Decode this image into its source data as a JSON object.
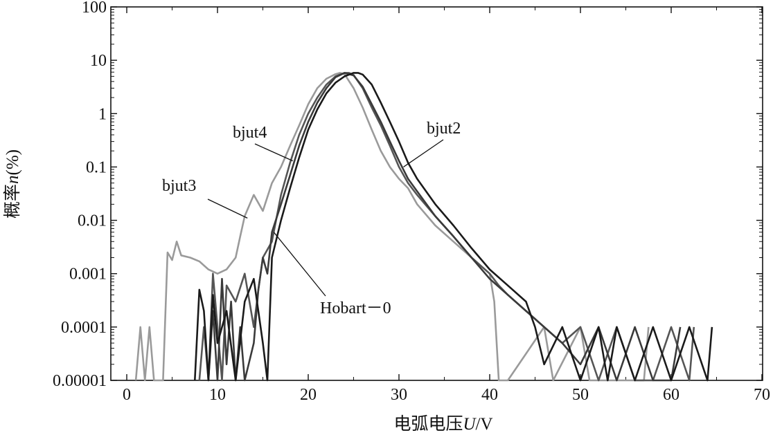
{
  "chart_data": {
    "type": "line",
    "title": "",
    "xlabel_main": "电弧电压",
    "xlabel_var": "U",
    "xlabel_unit": "/V",
    "ylabel_main": "概率",
    "ylabel_var": "n",
    "ylabel_unit": "(%)",
    "xlim": [
      0,
      70
    ],
    "ylim": [
      1e-05,
      100
    ],
    "yscale": "log",
    "grid": false,
    "xticks": [
      0,
      10,
      20,
      30,
      40,
      50,
      60,
      70
    ],
    "xtick_labels": [
      "0",
      "10",
      "20",
      "30",
      "40",
      "50",
      "60",
      "70"
    ],
    "yticks": [
      1e-05,
      0.0001,
      0.001,
      0.01,
      0.1,
      1,
      10,
      100
    ],
    "ytick_labels": [
      "0.00001",
      "0.0001",
      "0.001",
      "0.01",
      "0.1",
      "1",
      "10",
      "100"
    ],
    "series": [
      {
        "name": "bjut3",
        "color": "#9a9a9a",
        "x": [
          1.0,
          1.5,
          2.0,
          2.5,
          3.0,
          3.5,
          4.0,
          4.5,
          5.0,
          5.5,
          6.0,
          7.0,
          8.0,
          9.0,
          10.0,
          11.0,
          12.0,
          12.5,
          13.0,
          14.0,
          15.0,
          16.0,
          17.0,
          18.0,
          19.0,
          20.0,
          21.0,
          22.0,
          23.0,
          23.5,
          24.0,
          25.0,
          26.0,
          27.0,
          28.0,
          29.0,
          30.0,
          31.0,
          32.0,
          34.0,
          36.0,
          38.0,
          40.0,
          40.5,
          41.0,
          42.0,
          46.0,
          47.0,
          50.0,
          51.0,
          57.0,
          57.5
        ],
        "y": [
          1e-05,
          0.0001,
          1e-05,
          0.0001,
          1e-05,
          1e-05,
          1e-05,
          0.0025,
          0.0018,
          0.004,
          0.0022,
          0.002,
          0.0017,
          0.0012,
          0.001,
          0.0012,
          0.002,
          0.005,
          0.012,
          0.03,
          0.015,
          0.05,
          0.1,
          0.25,
          0.6,
          1.5,
          3.0,
          4.5,
          5.5,
          5.8,
          5.5,
          3.0,
          1.3,
          0.5,
          0.2,
          0.1,
          0.06,
          0.04,
          0.02,
          0.008,
          0.004,
          0.002,
          0.001,
          0.0003,
          1e-05,
          1e-05,
          0.0001,
          1e-05,
          0.0001,
          1e-05,
          1e-05,
          0.0001
        ]
      },
      {
        "name": "bjut4",
        "color": "#555555",
        "x": [
          8.0,
          8.5,
          9.0,
          9.5,
          10.0,
          10.5,
          11.0,
          12.0,
          13.0,
          14.0,
          14.5,
          15.0,
          16.0,
          17.0,
          18.0,
          19.0,
          20.0,
          21.0,
          22.0,
          23.0,
          24.0,
          24.5,
          25.0,
          26.0,
          27.0,
          28.0,
          29.0,
          30.0,
          31.0,
          32.0,
          34.0,
          36.0,
          38.0,
          40.0,
          41.0,
          42.0,
          44.0,
          46.0,
          48.0,
          50.0,
          52.0,
          54.0,
          56.0,
          58.0,
          60.0,
          62.0,
          62.5
        ],
        "y": [
          1e-05,
          0.0001,
          1e-05,
          0.001,
          0.0001,
          1e-05,
          0.0006,
          0.0003,
          0.001,
          0.0001,
          0.0005,
          0.002,
          0.004,
          0.03,
          0.12,
          0.4,
          1.0,
          2.0,
          3.5,
          5.0,
          5.8,
          5.8,
          5.3,
          3.0,
          1.3,
          0.6,
          0.25,
          0.1,
          0.05,
          0.03,
          0.012,
          0.005,
          0.002,
          0.001,
          0.0006,
          0.0004,
          0.0002,
          0.0001,
          5e-05,
          0.0001,
          1e-05,
          0.0001,
          1e-05,
          1e-05,
          0.0001,
          1e-05,
          0.0001
        ]
      },
      {
        "name": "Hobart-0",
        "color": "#3a3a3a",
        "x": [
          9.0,
          9.5,
          10.0,
          10.5,
          11.0,
          11.5,
          12.0,
          12.5,
          13.0,
          14.0,
          14.5,
          15.0,
          15.5,
          16.0,
          17.0,
          18.0,
          19.0,
          20.0,
          21.0,
          22.0,
          23.0,
          24.0,
          25.0,
          26.0,
          27.0,
          28.0,
          29.0,
          30.0,
          31.0,
          32.0,
          34.0,
          36.0,
          38.0,
          40.0,
          42.0,
          44.0,
          46.0,
          48.0,
          50.0,
          52.0,
          54.0,
          56.0,
          58.0,
          60.0,
          61.0
        ],
        "y": [
          1e-05,
          0.0002,
          1e-05,
          0.0008,
          2e-05,
          0.0003,
          1e-05,
          0.0001,
          1e-05,
          5e-05,
          0.0005,
          0.002,
          0.001,
          0.006,
          0.02,
          0.07,
          0.25,
          0.7,
          1.6,
          3.0,
          4.8,
          5.8,
          5.2,
          3.2,
          1.5,
          0.7,
          0.3,
          0.13,
          0.06,
          0.035,
          0.012,
          0.005,
          0.002,
          0.0008,
          0.0004,
          0.0002,
          0.0001,
          5e-05,
          2e-05,
          0.0001,
          1e-05,
          0.0001,
          1e-05,
          1e-05,
          0.0001
        ]
      },
      {
        "name": "bjut2",
        "color": "#1a1a1a",
        "x": [
          7.5,
          8.0,
          8.5,
          9.0,
          9.5,
          10.0,
          11.0,
          12.0,
          13.0,
          14.0,
          15.0,
          15.5,
          16.0,
          17.0,
          18.0,
          19.0,
          20.0,
          21.0,
          22.0,
          23.0,
          24.0,
          25.0,
          25.5,
          26.0,
          27.0,
          28.0,
          29.0,
          30.0,
          31.0,
          32.0,
          34.0,
          36.0,
          38.0,
          40.0,
          42.0,
          44.0,
          45.0,
          46.0,
          48.0,
          50.0,
          52.0,
          53.0,
          54.0,
          56.0,
          58.0,
          60.0,
          62.0,
          64.0,
          64.5
        ],
        "y": [
          1e-05,
          0.0005,
          0.0002,
          1e-05,
          0.0004,
          5e-05,
          0.0002,
          1e-05,
          0.0003,
          0.0008,
          5e-05,
          1e-05,
          0.002,
          0.01,
          0.04,
          0.15,
          0.5,
          1.2,
          2.4,
          3.8,
          5.0,
          5.8,
          5.8,
          5.4,
          3.5,
          1.6,
          0.7,
          0.3,
          0.12,
          0.06,
          0.02,
          0.008,
          0.003,
          0.0012,
          0.0006,
          0.0003,
          0.0001,
          2e-05,
          0.0001,
          1e-05,
          0.0001,
          1e-05,
          0.0001,
          1e-05,
          0.0001,
          1e-05,
          0.0001,
          1e-05,
          0.0001
        ]
      }
    ],
    "annotations": [
      {
        "text": "bjut4",
        "target_series": "bjut4",
        "target_x": 18.3,
        "target_y": 0.13
      },
      {
        "text": "bjut3",
        "target_series": "bjut3",
        "target_x": 13.3,
        "target_y": 0.011
      },
      {
        "text": "bjut2",
        "target_series": "bjut2",
        "target_x": 30.5,
        "target_y": 0.1
      },
      {
        "text": "Hobart－0",
        "target_series": "Hobart-0",
        "target_x": 16.2,
        "target_y": 0.006
      }
    ]
  }
}
